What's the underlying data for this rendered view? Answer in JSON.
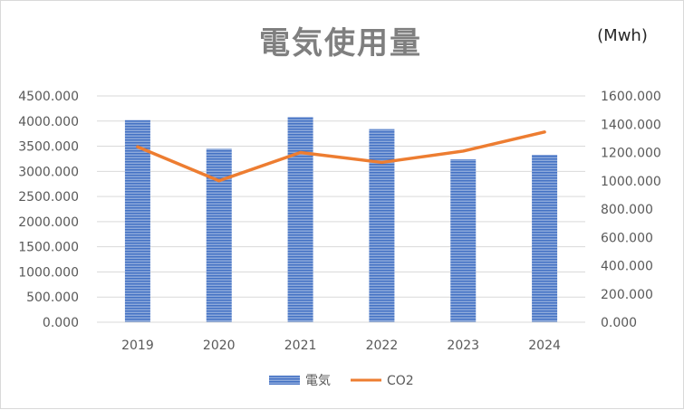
{
  "chart_data": {
    "type": "bar",
    "title": "電気使用量",
    "unit_label": "(Mwh)",
    "categories": [
      "2019",
      "2020",
      "2021",
      "2022",
      "2023",
      "2024"
    ],
    "series": [
      {
        "name": "電気",
        "kind": "bar",
        "axis": "left",
        "color": "#4472c4",
        "values": [
          4020,
          3450,
          4080,
          3840,
          3240,
          3330
        ]
      },
      {
        "name": "CO2",
        "kind": "line",
        "axis": "right",
        "color": "#ed7d31",
        "values": [
          1240,
          1000,
          1200,
          1130,
          1210,
          1345
        ]
      }
    ],
    "y_left": {
      "min": 0,
      "max": 4500,
      "step": 500,
      "tick_labels": [
        "0.000",
        "500.000",
        "1000.000",
        "1500.000",
        "2000.000",
        "2500.000",
        "3000.000",
        "3500.000",
        "4000.000",
        "4500.000"
      ]
    },
    "y_right": {
      "min": 0,
      "max": 1600,
      "step": 200,
      "tick_labels": [
        "0.000",
        "200.000",
        "400.000",
        "600.000",
        "800.000",
        "1000.000",
        "1200.000",
        "1400.000",
        "1600.000"
      ]
    },
    "grid": true,
    "legend_position": "bottom"
  }
}
